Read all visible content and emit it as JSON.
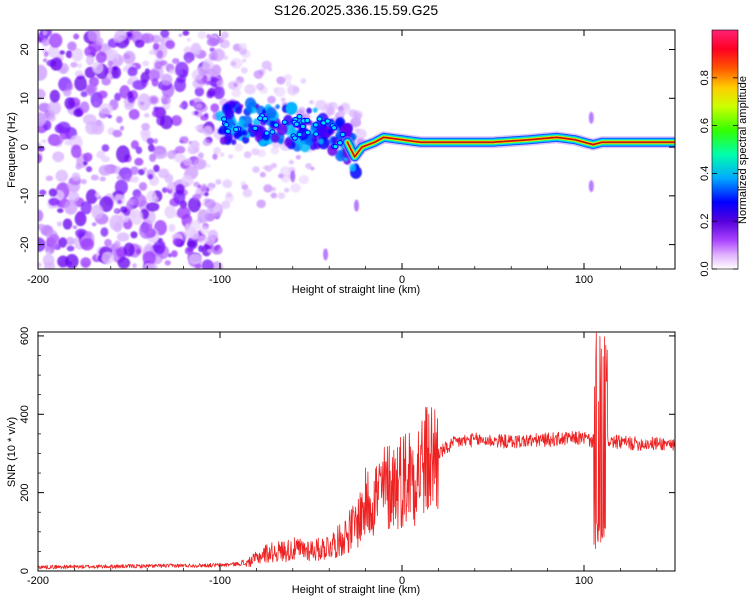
{
  "title": "S126.2025.336.15.59.G25",
  "chart_data": [
    {
      "type": "heatmap",
      "xlabel": "Height of straight line (km)",
      "ylabel": "Frequency (Hz)",
      "xlim": [
        -200,
        150
      ],
      "ylim": [
        -25,
        24
      ],
      "xticks": [
        -200,
        -100,
        0,
        100
      ],
      "yticks": [
        -20,
        -10,
        0,
        10,
        20
      ],
      "colorbar": {
        "label": "Normalized spectral amplitude",
        "range": [
          0.0,
          1.0
        ],
        "ticks": [
          "0.0",
          "0.2",
          "0.4",
          "0.6",
          "0.8"
        ],
        "colors": [
          "#ffffff",
          "#cc66ff",
          "#7700ee",
          "#0000ff",
          "#00ccff",
          "#00ff66",
          "#99ff00",
          "#ffff00",
          "#ff8800",
          "#ff0000",
          "#ff2288"
        ]
      },
      "ridge": {
        "description": "dominant frequency track",
        "x": [
          -100,
          -90,
          -80,
          -70,
          -60,
          -50,
          -40,
          -30,
          -26,
          -22,
          -15,
          -10,
          0,
          10,
          30,
          50,
          70,
          85,
          95,
          100,
          105,
          110,
          130,
          150
        ],
        "y": [
          5,
          5,
          5,
          4.5,
          4,
          4,
          3,
          1,
          -2,
          0,
          1,
          2,
          1.5,
          1,
          1,
          1,
          1.5,
          2,
          1.5,
          1,
          0.5,
          1,
          1,
          1
        ]
      }
    },
    {
      "type": "line",
      "xlabel": "Height of straight line (km)",
      "ylabel": "SNR (10 * v/v)",
      "xlim": [
        -200,
        150
      ],
      "ylim": [
        0,
        610
      ],
      "xticks": [
        -200,
        -100,
        0,
        100
      ],
      "yticks": [
        0,
        200,
        400,
        600
      ],
      "color": "#ee2222",
      "envelope": {
        "x": [
          -200,
          -150,
          -100,
          -85,
          -75,
          -60,
          -45,
          -35,
          -25,
          -20,
          -10,
          0,
          10,
          20,
          30,
          40,
          60,
          80,
          100,
          105,
          108,
          110,
          112,
          115,
          130,
          150
        ],
        "y": [
          10,
          12,
          15,
          20,
          45,
          55,
          55,
          75,
          120,
          170,
          210,
          235,
          265,
          300,
          330,
          335,
          330,
          335,
          340,
          330,
          200,
          330,
          340,
          330,
          325,
          325
        ]
      }
    }
  ]
}
